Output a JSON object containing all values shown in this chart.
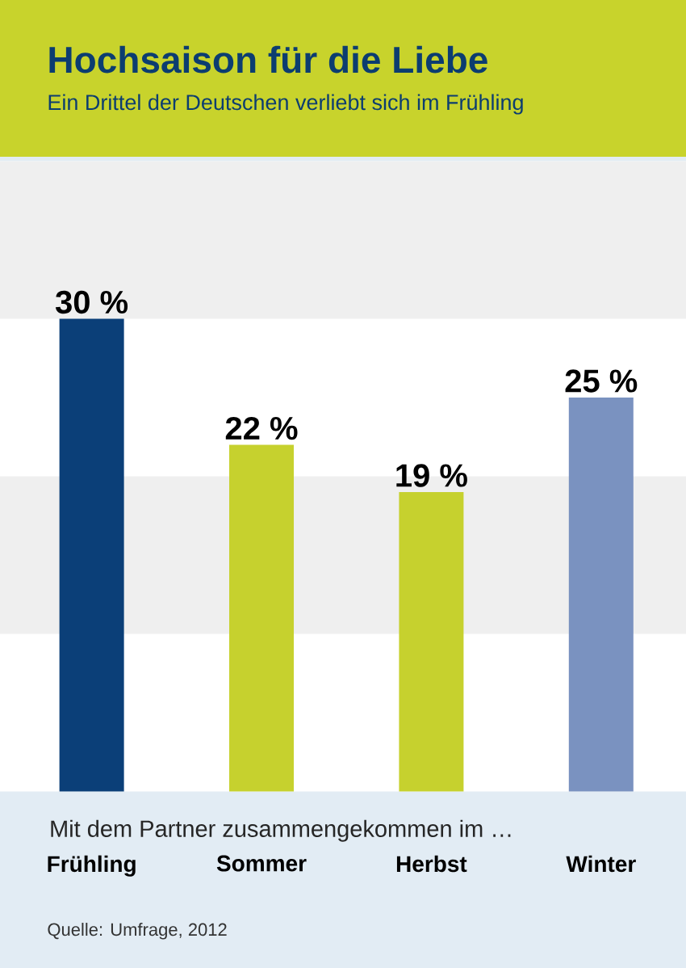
{
  "chart_data": {
    "type": "bar",
    "title": "Hochsaison für die Liebe",
    "subtitle": "Ein Drittel der Deutschen verliebt sich im Frühling",
    "xlabel": "Mit dem Partner zusammengekommen im …",
    "categories": [
      "Frühling",
      "Sommer",
      "Herbst",
      "Winter"
    ],
    "values": [
      30,
      22,
      19,
      25
    ],
    "colors": [
      "#0b3f78",
      "#c6d12e",
      "#c6d12e",
      "#7a92c0"
    ],
    "value_labels": [
      "30 %",
      "22 %",
      "19 %",
      "25 %"
    ],
    "bands": [
      {
        "axis": "y",
        "from": 10,
        "to": 20,
        "color": "#efefef"
      },
      {
        "axis": "y",
        "from": 30,
        "to": 40,
        "color": "#efefef"
      }
    ],
    "annotations": [
      "Quelle: Umfrage, 2012"
    ]
  }
}
